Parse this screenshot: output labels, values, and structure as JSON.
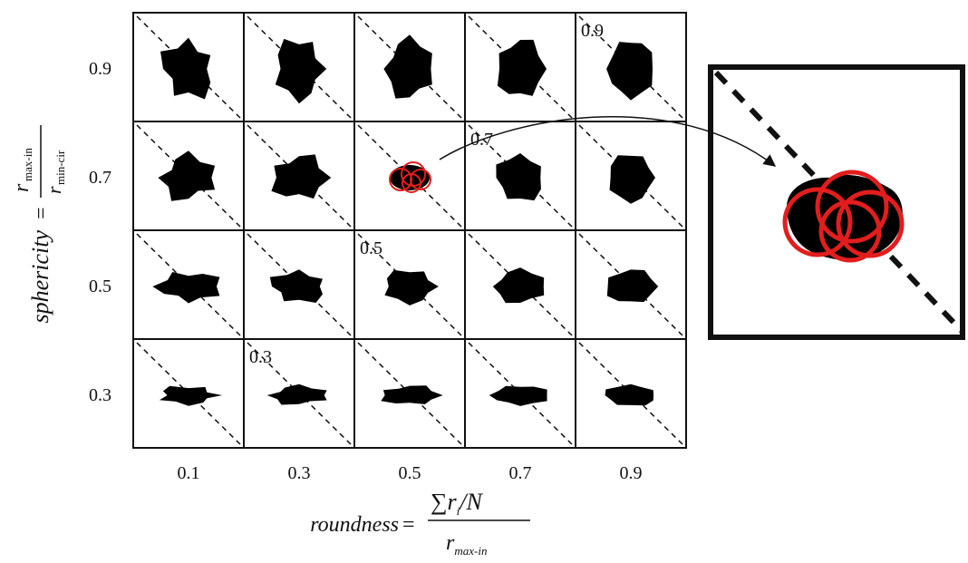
{
  "grid": {
    "columns": [
      "0.1",
      "0.3",
      "0.5",
      "0.7",
      "0.9"
    ],
    "rows": [
      "0.9",
      "0.7",
      "0.5",
      "0.3"
    ],
    "diagonal_labels": [
      "0.9",
      "0.7",
      "0.5",
      "0.3"
    ]
  },
  "y_axis": {
    "name": "sphericity",
    "operator": "=",
    "numerator": "r",
    "numerator_sub": "max-in",
    "denominator": "r",
    "denominator_sub": "min-cir"
  },
  "x_axis": {
    "name": "roundness",
    "operator": "=",
    "numerator": "∑r",
    "numerator_sub": "i",
    "numerator_rest": "/N",
    "denominator": "r",
    "denominator_sub": "max-in"
  }
}
